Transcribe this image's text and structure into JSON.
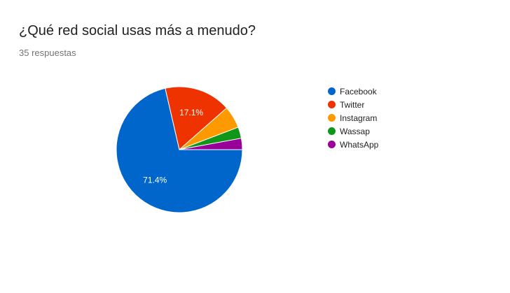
{
  "header": {
    "title": "¿Qué red social usas más a menudo?",
    "subtitle": "35 respuestas"
  },
  "chart_data": {
    "type": "pie",
    "title": "¿Qué red social usas más a menudo?",
    "categories": [
      "Facebook",
      "Twitter",
      "Instagram",
      "Wassap",
      "WhatsApp"
    ],
    "values": [
      71.4,
      17.1,
      5.7,
      2.9,
      2.9
    ],
    "colors": [
      "#0066cc",
      "#ee3300",
      "#ff9900",
      "#109618",
      "#990099"
    ],
    "data_labels": [
      "71.4%",
      "17.1%",
      "",
      "",
      ""
    ],
    "legend_position": "right"
  }
}
